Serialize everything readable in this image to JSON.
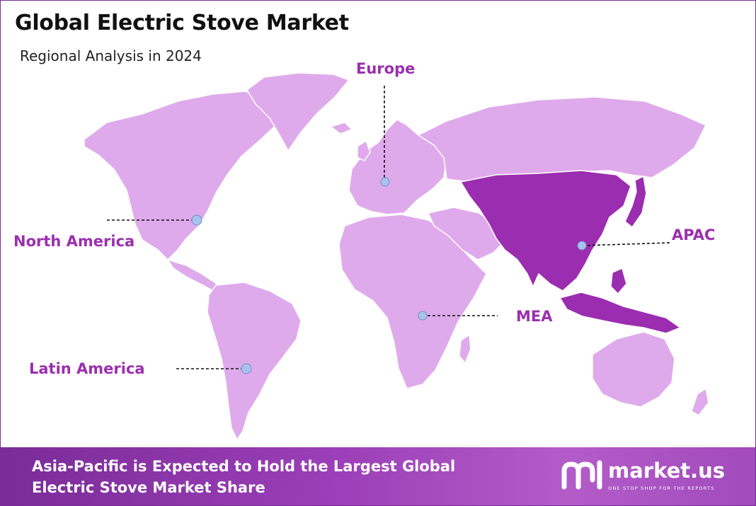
{
  "header": {
    "title": "Global Electric Stove Market",
    "subtitle": "Regional Analysis in 2024"
  },
  "map": {
    "colors": {
      "land": "#dfaaeb",
      "highlight": "#9b2db0",
      "marker": "#a9c3ee",
      "label": "#9b2fae"
    },
    "highlighted_region": "APAC",
    "regions": [
      {
        "label": "North America"
      },
      {
        "label": "Europe"
      },
      {
        "label": "APAC"
      },
      {
        "label": "MEA"
      },
      {
        "label": "Latin America"
      }
    ]
  },
  "footer": {
    "headline_line1": "Asia-Pacific is Expected to Hold the Largest Global",
    "headline_line2": "Electric Stove Market Share",
    "brand_name": "market.us",
    "brand_tagline": "ONE STOP SHOP FOR THE REPORTS"
  }
}
